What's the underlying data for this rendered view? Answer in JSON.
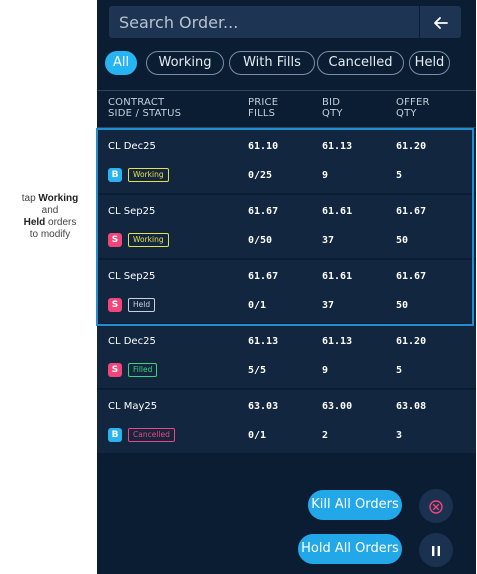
{
  "annotation": {
    "line1_prefix": "tap ",
    "line1_bold": "Working",
    "line2": "and",
    "line3_bold": "Held",
    "line3_suffix": " orders",
    "line4": "to modify"
  },
  "search": {
    "placeholder": "Search Order...",
    "back_icon": "arrow-left-icon"
  },
  "filters": [
    {
      "label": "All",
      "active": true
    },
    {
      "label": "Working",
      "active": false
    },
    {
      "label": "With Fills",
      "active": false
    },
    {
      "label": "Cancelled",
      "active": false
    },
    {
      "label": "Held",
      "active": false
    }
  ],
  "columns": {
    "contract": {
      "line1": "CONTRACT",
      "line2": "SIDE / STATUS"
    },
    "price": {
      "line1": "PRICE",
      "line2": "FILLS"
    },
    "bid": {
      "line1": "BID",
      "line2": "QTY"
    },
    "offer": {
      "line1": "OFFER",
      "line2": "QTY"
    }
  },
  "orders": [
    {
      "contract": "CL Dec25",
      "side": "B",
      "status": "Working",
      "price": "61.10",
      "fills": "0/25",
      "bid": "61.13",
      "qty": "9",
      "offer": "61.20",
      "offer_qty": "5"
    },
    {
      "contract": "CL Sep25",
      "side": "S",
      "status": "Working",
      "price": "61.67",
      "fills": "0/50",
      "bid": "61.61",
      "qty": "37",
      "offer": "61.67",
      "offer_qty": "50"
    },
    {
      "contract": "CL Sep25",
      "side": "S",
      "status": "Held",
      "price": "61.67",
      "fills": "0/1",
      "bid": "61.61",
      "qty": "37",
      "offer": "61.67",
      "offer_qty": "50"
    },
    {
      "contract": "CL Dec25",
      "side": "S",
      "status": "Filled",
      "price": "61.13",
      "fills": "5/5",
      "bid": "61.13",
      "qty": "9",
      "offer": "61.20",
      "offer_qty": "5"
    },
    {
      "contract": "CL May25",
      "side": "B",
      "status": "Cancelled",
      "price": "63.03",
      "fills": "0/1",
      "bid": "63.00",
      "qty": "2",
      "offer": "63.08",
      "offer_qty": "3"
    }
  ],
  "actions": {
    "kill_label": "Kill All Orders",
    "hold_label": "Hold All Orders",
    "kill_icon": "x-circle-icon",
    "hold_icon": "pause-icon"
  },
  "colors": {
    "buy": "#29b3f0",
    "sell": "#f2457a",
    "working": "#e6e04a",
    "held": "#c9d2dc",
    "filled": "#3fd17a",
    "cancelled": "#f2457a",
    "accent": "#22a8e8"
  }
}
